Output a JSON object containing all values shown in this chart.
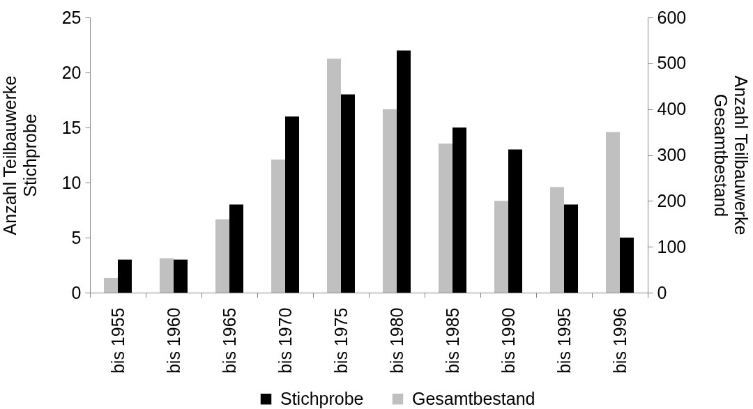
{
  "chart_data": {
    "type": "bar",
    "categories": [
      "bis 1955",
      "bis 1960",
      "bis 1965",
      "bis 1970",
      "bis 1975",
      "bis 1980",
      "bis 1985",
      "bis 1990",
      "bis 1995",
      "bis 1996"
    ],
    "series": [
      {
        "name": "Stichprobe",
        "color": "#000000",
        "values": [
          3,
          3,
          8,
          16,
          18,
          22,
          15,
          13,
          8,
          5
        ]
      },
      {
        "name": "Gesamtbestand",
        "color": "#c0c0c0",
        "axis": "y2",
        "values": [
          32,
          75,
          160,
          290,
          510,
          400,
          325,
          200,
          230,
          350
        ]
      }
    ],
    "ylabel": "Anzahl Teilbauwerke\nStichprobe",
    "y2label": "Anzahl Teilbauwerke\nGesamtbestand",
    "ylim": [
      0,
      25
    ],
    "yticks": [
      0,
      5,
      10,
      15,
      20,
      25
    ],
    "y2lim": [
      0,
      600
    ],
    "y2ticks": [
      0,
      100,
      200,
      300,
      400,
      500,
      600
    ],
    "grid": false,
    "legend": "bottom"
  }
}
